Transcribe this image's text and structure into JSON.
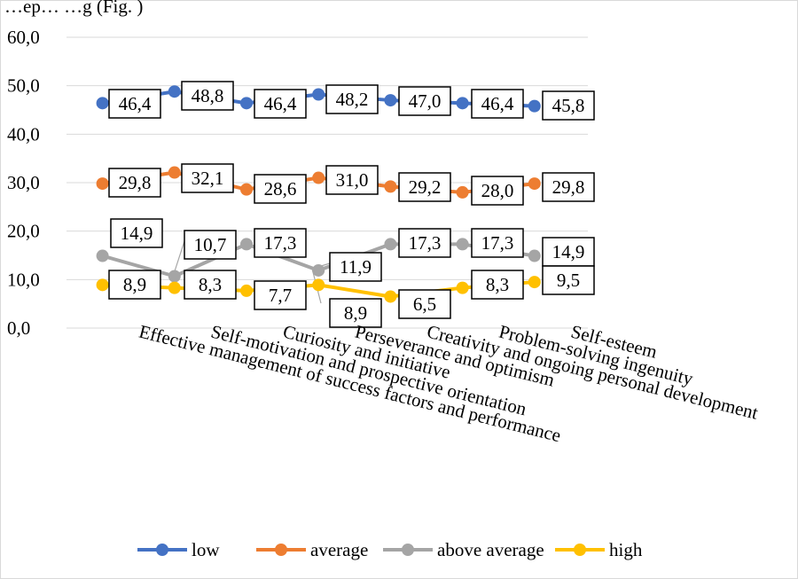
{
  "caption": "…ep… …g (Fig. )",
  "chart_data": {
    "type": "line",
    "categories": [
      "Effective management of success factors and performance",
      "Self-motivation and prospective orientation",
      "Curiosity and initiative",
      "Perseverance and optimism",
      "Creativity and ongoing personal development",
      "Problem-solving ingenuity",
      "Self-esteem"
    ],
    "series": [
      {
        "name": "low",
        "color": "#4472C4",
        "values": [
          46.4,
          48.8,
          46.4,
          48.2,
          47.0,
          46.4,
          45.8
        ],
        "labels": [
          "46,4",
          "48,8",
          "46,4",
          "48,2",
          "47,0",
          "46,4",
          "45,8"
        ]
      },
      {
        "name": "average",
        "color": "#ED7D31",
        "values": [
          29.8,
          32.1,
          28.6,
          31.0,
          29.2,
          28.0,
          29.8
        ],
        "labels": [
          "29,8",
          "32,1",
          "28,6",
          "31,0",
          "29,2",
          "28,0",
          "29,8"
        ]
      },
      {
        "name": "above average",
        "color": "#A5A5A5",
        "values": [
          14.9,
          10.7,
          17.3,
          11.9,
          17.3,
          17.3,
          14.9
        ],
        "labels": [
          "14,9",
          "10,7",
          "17,3",
          "11,9",
          "17,3",
          "17,3",
          "14,9"
        ]
      },
      {
        "name": "high",
        "color": "#FFC000",
        "values": [
          8.9,
          8.3,
          7.7,
          8.9,
          6.5,
          8.3,
          9.5
        ],
        "labels": [
          "8,9",
          "8,3",
          "7,7",
          "8,9",
          "6,5",
          "8,3",
          "9,5"
        ]
      }
    ],
    "yticks": [
      "0,0",
      "10,0",
      "20,0",
      "30,0",
      "40,0",
      "50,0",
      "60,0"
    ],
    "ylim": [
      0,
      60
    ],
    "grid": true,
    "legend_position": "bottom",
    "title": "",
    "xlabel": "",
    "ylabel": ""
  }
}
